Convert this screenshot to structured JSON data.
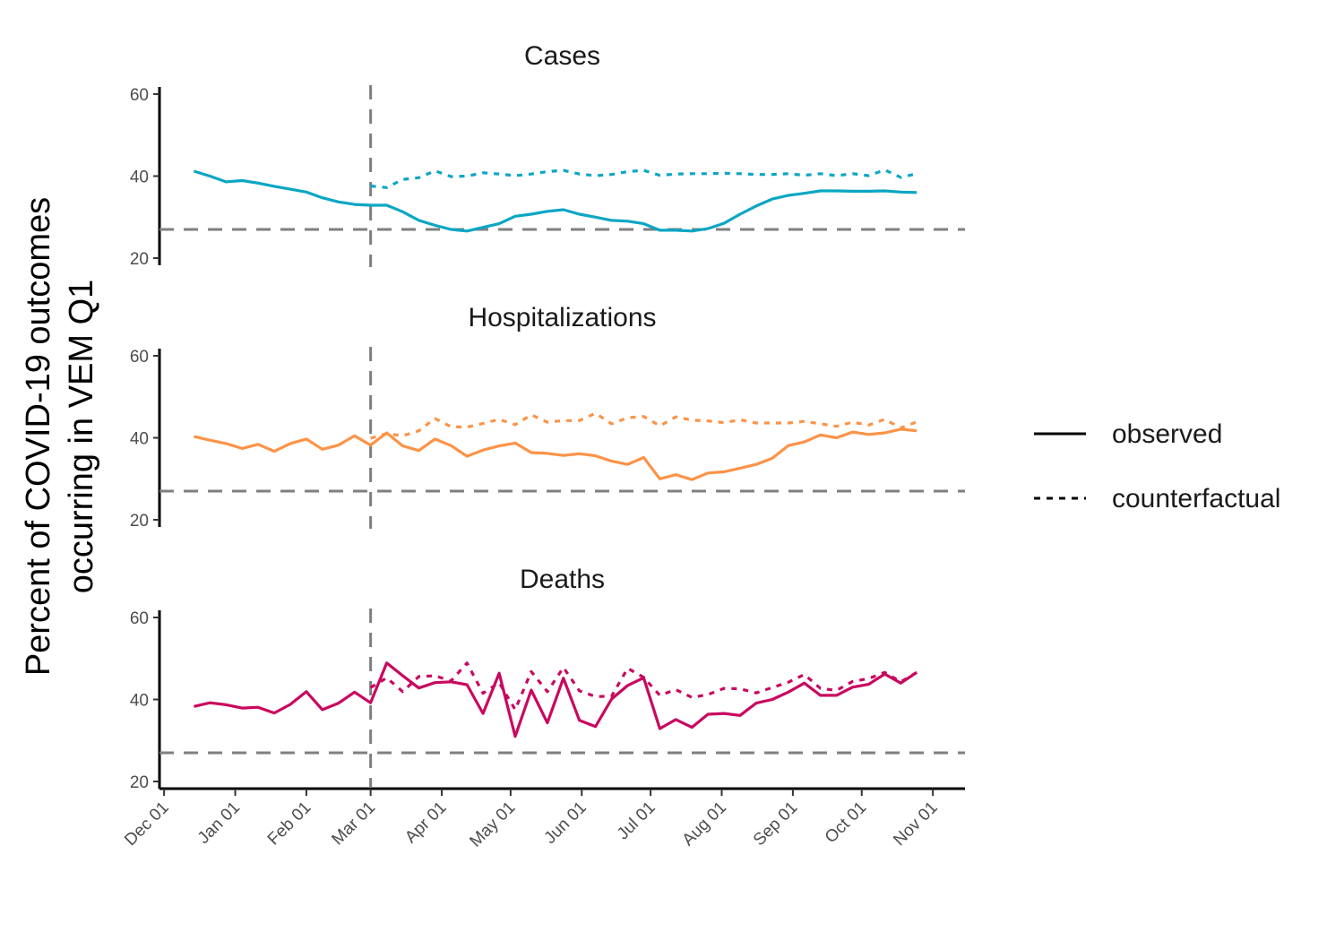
{
  "chart_data": {
    "type": "line",
    "ylabel_lines": [
      "Percent of COVID-19 outcomes",
      "occurring in VEM Q1"
    ],
    "ylim": [
      20,
      60
    ],
    "yticks": [
      20,
      40,
      60
    ],
    "xlim": [
      "2020-11-29",
      "2021-11-15"
    ],
    "xticks": [
      {
        "date": "2020-12-01",
        "label": "Dec 01"
      },
      {
        "date": "2021-01-01",
        "label": "Jan 01"
      },
      {
        "date": "2021-02-01",
        "label": "Feb 01"
      },
      {
        "date": "2021-03-01",
        "label": "Mar 01"
      },
      {
        "date": "2021-04-01",
        "label": "Apr 01"
      },
      {
        "date": "2021-05-01",
        "label": "May 01"
      },
      {
        "date": "2021-06-01",
        "label": "Jun 01"
      },
      {
        "date": "2021-07-01",
        "label": "Jul 01"
      },
      {
        "date": "2021-08-01",
        "label": "Aug 01"
      },
      {
        "date": "2021-09-01",
        "label": "Sep 01"
      },
      {
        "date": "2021-10-01",
        "label": "Oct 01"
      },
      {
        "date": "2021-11-01",
        "label": "Nov 01"
      }
    ],
    "reference_hline": 27,
    "reference_vline": "2021-03-01",
    "legend": {
      "position": "right",
      "entries": [
        {
          "label": "observed",
          "style": "solid"
        },
        {
          "label": "counterfactual",
          "style": "dotted"
        }
      ]
    },
    "panels": [
      {
        "title": "Cases",
        "color": "#0BA6C4",
        "observed": [
          [
            "2020-12-14",
            41.2
          ],
          [
            "2020-12-21",
            40.0
          ],
          [
            "2020-12-28",
            38.6
          ],
          [
            "2021-01-04",
            38.9
          ],
          [
            "2021-01-11",
            38.3
          ],
          [
            "2021-01-18",
            37.5
          ],
          [
            "2021-01-25",
            36.8
          ],
          [
            "2021-02-01",
            36.1
          ],
          [
            "2021-02-08",
            34.7
          ],
          [
            "2021-02-15",
            33.7
          ],
          [
            "2021-02-22",
            33.1
          ],
          [
            "2021-03-01",
            32.9
          ],
          [
            "2021-03-08",
            32.9
          ],
          [
            "2021-03-15",
            31.3
          ],
          [
            "2021-03-22",
            29.2
          ],
          [
            "2021-03-29",
            28.0
          ],
          [
            "2021-04-05",
            27.0
          ],
          [
            "2021-04-12",
            26.6
          ],
          [
            "2021-04-19",
            27.5
          ],
          [
            "2021-04-26",
            28.4
          ],
          [
            "2021-05-03",
            30.2
          ],
          [
            "2021-05-10",
            30.7
          ],
          [
            "2021-05-17",
            31.4
          ],
          [
            "2021-05-24",
            31.8
          ],
          [
            "2021-05-31",
            30.7
          ],
          [
            "2021-06-07",
            30.0
          ],
          [
            "2021-06-14",
            29.2
          ],
          [
            "2021-06-21",
            29.0
          ],
          [
            "2021-06-28",
            28.4
          ],
          [
            "2021-07-05",
            26.8
          ],
          [
            "2021-07-12",
            26.8
          ],
          [
            "2021-07-19",
            26.6
          ],
          [
            "2021-07-26",
            27.2
          ],
          [
            "2021-08-02",
            28.5
          ],
          [
            "2021-08-09",
            30.7
          ],
          [
            "2021-08-16",
            32.7
          ],
          [
            "2021-08-23",
            34.4
          ],
          [
            "2021-08-30",
            35.3
          ],
          [
            "2021-09-06",
            35.8
          ],
          [
            "2021-09-13",
            36.4
          ],
          [
            "2021-09-20",
            36.4
          ],
          [
            "2021-09-27",
            36.3
          ],
          [
            "2021-10-04",
            36.3
          ],
          [
            "2021-10-11",
            36.4
          ],
          [
            "2021-10-18",
            36.1
          ],
          [
            "2021-10-25",
            36.0
          ]
        ],
        "counterfactual": [
          [
            "2021-03-01",
            37.6
          ],
          [
            "2021-03-08",
            37.2
          ],
          [
            "2021-03-15",
            39.2
          ],
          [
            "2021-03-22",
            39.6
          ],
          [
            "2021-03-29",
            41.3
          ],
          [
            "2021-04-05",
            39.9
          ],
          [
            "2021-04-12",
            40.0
          ],
          [
            "2021-04-19",
            40.8
          ],
          [
            "2021-04-26",
            40.5
          ],
          [
            "2021-05-03",
            40.1
          ],
          [
            "2021-05-10",
            40.5
          ],
          [
            "2021-05-17",
            41.1
          ],
          [
            "2021-05-24",
            41.4
          ],
          [
            "2021-05-31",
            40.5
          ],
          [
            "2021-06-07",
            40.1
          ],
          [
            "2021-06-14",
            40.4
          ],
          [
            "2021-06-21",
            41.1
          ],
          [
            "2021-06-28",
            41.4
          ],
          [
            "2021-07-05",
            40.2
          ],
          [
            "2021-07-12",
            40.5
          ],
          [
            "2021-07-19",
            40.6
          ],
          [
            "2021-07-26",
            40.6
          ],
          [
            "2021-08-02",
            40.7
          ],
          [
            "2021-08-09",
            40.6
          ],
          [
            "2021-08-16",
            40.4
          ],
          [
            "2021-08-23",
            40.4
          ],
          [
            "2021-08-30",
            40.6
          ],
          [
            "2021-09-06",
            40.2
          ],
          [
            "2021-09-13",
            40.6
          ],
          [
            "2021-09-20",
            40.1
          ],
          [
            "2021-09-27",
            40.6
          ],
          [
            "2021-10-04",
            40.1
          ],
          [
            "2021-10-11",
            41.5
          ],
          [
            "2021-10-18",
            39.7
          ],
          [
            "2021-10-25",
            40.6
          ]
        ]
      },
      {
        "title": "Hospitalizations",
        "color": "#FC9347",
        "observed": [
          [
            "2020-12-14",
            40.3
          ],
          [
            "2020-12-21",
            39.4
          ],
          [
            "2020-12-28",
            38.6
          ],
          [
            "2021-01-04",
            37.4
          ],
          [
            "2021-01-11",
            38.4
          ],
          [
            "2021-01-18",
            36.7
          ],
          [
            "2021-01-25",
            38.6
          ],
          [
            "2021-02-01",
            39.7
          ],
          [
            "2021-02-08",
            37.2
          ],
          [
            "2021-02-15",
            38.2
          ],
          [
            "2021-02-22",
            40.5
          ],
          [
            "2021-03-01",
            38.2
          ],
          [
            "2021-03-08",
            41.2
          ],
          [
            "2021-03-15",
            38.0
          ],
          [
            "2021-03-22",
            36.9
          ],
          [
            "2021-03-29",
            39.7
          ],
          [
            "2021-04-05",
            38.1
          ],
          [
            "2021-04-12",
            35.5
          ],
          [
            "2021-04-19",
            37.0
          ],
          [
            "2021-04-26",
            38.0
          ],
          [
            "2021-05-03",
            38.7
          ],
          [
            "2021-05-10",
            36.4
          ],
          [
            "2021-05-17",
            36.2
          ],
          [
            "2021-05-24",
            35.7
          ],
          [
            "2021-05-31",
            36.1
          ],
          [
            "2021-06-07",
            35.6
          ],
          [
            "2021-06-14",
            34.3
          ],
          [
            "2021-06-21",
            33.5
          ],
          [
            "2021-06-28",
            35.2
          ],
          [
            "2021-07-05",
            30.0
          ],
          [
            "2021-07-12",
            31.0
          ],
          [
            "2021-07-19",
            29.8
          ],
          [
            "2021-07-26",
            31.4
          ],
          [
            "2021-08-02",
            31.7
          ],
          [
            "2021-08-09",
            32.6
          ],
          [
            "2021-08-16",
            33.5
          ],
          [
            "2021-08-23",
            35.0
          ],
          [
            "2021-08-30",
            38.1
          ],
          [
            "2021-09-06",
            39.0
          ],
          [
            "2021-09-13",
            40.7
          ],
          [
            "2021-09-20",
            40.0
          ],
          [
            "2021-09-27",
            41.4
          ],
          [
            "2021-10-04",
            40.8
          ],
          [
            "2021-10-11",
            41.2
          ],
          [
            "2021-10-18",
            42.1
          ],
          [
            "2021-10-25",
            41.7
          ]
        ],
        "counterfactual": [
          [
            "2021-03-01",
            39.9
          ],
          [
            "2021-03-08",
            41.0
          ],
          [
            "2021-03-15",
            40.5
          ],
          [
            "2021-03-22",
            41.7
          ],
          [
            "2021-03-29",
            44.7
          ],
          [
            "2021-04-05",
            42.7
          ],
          [
            "2021-04-12",
            42.6
          ],
          [
            "2021-04-19",
            43.5
          ],
          [
            "2021-04-26",
            44.5
          ],
          [
            "2021-05-03",
            43.2
          ],
          [
            "2021-05-10",
            45.6
          ],
          [
            "2021-05-17",
            43.8
          ],
          [
            "2021-05-24",
            44.2
          ],
          [
            "2021-05-31",
            44.2
          ],
          [
            "2021-06-07",
            46.0
          ],
          [
            "2021-06-14",
            43.4
          ],
          [
            "2021-06-21",
            44.9
          ],
          [
            "2021-06-28",
            45.2
          ],
          [
            "2021-07-05",
            42.9
          ],
          [
            "2021-07-12",
            45.1
          ],
          [
            "2021-07-19",
            44.3
          ],
          [
            "2021-07-26",
            44.1
          ],
          [
            "2021-08-02",
            43.7
          ],
          [
            "2021-08-09",
            44.4
          ],
          [
            "2021-08-16",
            43.6
          ],
          [
            "2021-08-23",
            43.6
          ],
          [
            "2021-08-30",
            43.6
          ],
          [
            "2021-09-06",
            44.0
          ],
          [
            "2021-09-13",
            43.4
          ],
          [
            "2021-09-20",
            42.8
          ],
          [
            "2021-09-27",
            43.8
          ],
          [
            "2021-10-04",
            43.1
          ],
          [
            "2021-10-11",
            44.5
          ],
          [
            "2021-10-18",
            42.4
          ],
          [
            "2021-10-25",
            43.9
          ]
        ]
      },
      {
        "title": "Deaths",
        "color": "#C9085F",
        "observed": [
          [
            "2020-12-14",
            38.3
          ],
          [
            "2020-12-21",
            39.2
          ],
          [
            "2020-12-28",
            38.7
          ],
          [
            "2021-01-04",
            37.9
          ],
          [
            "2021-01-11",
            38.1
          ],
          [
            "2021-01-18",
            36.7
          ],
          [
            "2021-01-25",
            38.8
          ],
          [
            "2021-02-01",
            41.9
          ],
          [
            "2021-02-08",
            37.5
          ],
          [
            "2021-02-15",
            39.1
          ],
          [
            "2021-02-22",
            41.8
          ],
          [
            "2021-03-01",
            39.2
          ],
          [
            "2021-03-08",
            48.9
          ],
          [
            "2021-03-15",
            45.8
          ],
          [
            "2021-03-22",
            42.8
          ],
          [
            "2021-03-29",
            44.1
          ],
          [
            "2021-04-05",
            44.3
          ],
          [
            "2021-04-12",
            43.6
          ],
          [
            "2021-04-19",
            36.6
          ],
          [
            "2021-04-26",
            46.4
          ],
          [
            "2021-05-03",
            31.0
          ],
          [
            "2021-05-10",
            42.3
          ],
          [
            "2021-05-17",
            34.3
          ],
          [
            "2021-05-24",
            45.2
          ],
          [
            "2021-05-31",
            34.9
          ],
          [
            "2021-06-07",
            33.4
          ],
          [
            "2021-06-14",
            40.1
          ],
          [
            "2021-06-21",
            43.4
          ],
          [
            "2021-06-28",
            45.3
          ],
          [
            "2021-07-05",
            32.9
          ],
          [
            "2021-07-12",
            35.1
          ],
          [
            "2021-07-19",
            33.2
          ],
          [
            "2021-07-26",
            36.4
          ],
          [
            "2021-08-02",
            36.6
          ],
          [
            "2021-08-09",
            36.1
          ],
          [
            "2021-08-16",
            39.1
          ],
          [
            "2021-08-23",
            40.0
          ],
          [
            "2021-08-30",
            41.8
          ],
          [
            "2021-09-06",
            44.0
          ],
          [
            "2021-09-13",
            41.0
          ],
          [
            "2021-09-20",
            41.0
          ],
          [
            "2021-09-27",
            43.0
          ],
          [
            "2021-10-04",
            43.7
          ],
          [
            "2021-10-11",
            46.2
          ],
          [
            "2021-10-18",
            44.0
          ],
          [
            "2021-10-25",
            46.6
          ]
        ],
        "counterfactual": [
          [
            "2021-03-01",
            42.9
          ],
          [
            "2021-03-08",
            45.3
          ],
          [
            "2021-03-15",
            41.9
          ],
          [
            "2021-03-22",
            45.6
          ],
          [
            "2021-03-29",
            45.8
          ],
          [
            "2021-04-05",
            44.5
          ],
          [
            "2021-04-12",
            48.9
          ],
          [
            "2021-04-19",
            41.5
          ],
          [
            "2021-04-26",
            44.1
          ],
          [
            "2021-05-03",
            37.5
          ],
          [
            "2021-05-10",
            46.8
          ],
          [
            "2021-05-17",
            41.9
          ],
          [
            "2021-05-24",
            47.8
          ],
          [
            "2021-05-31",
            42.1
          ],
          [
            "2021-06-07",
            40.7
          ],
          [
            "2021-06-14",
            40.8
          ],
          [
            "2021-06-21",
            47.6
          ],
          [
            "2021-06-28",
            45.4
          ],
          [
            "2021-07-05",
            41.0
          ],
          [
            "2021-07-12",
            42.4
          ],
          [
            "2021-07-19",
            40.5
          ],
          [
            "2021-07-26",
            41.2
          ],
          [
            "2021-08-02",
            42.7
          ],
          [
            "2021-08-09",
            42.6
          ],
          [
            "2021-08-16",
            41.6
          ],
          [
            "2021-08-23",
            42.9
          ],
          [
            "2021-08-30",
            44.2
          ],
          [
            "2021-09-06",
            46.1
          ],
          [
            "2021-09-13",
            42.7
          ],
          [
            "2021-09-20",
            42.2
          ],
          [
            "2021-09-27",
            44.4
          ],
          [
            "2021-10-04",
            45.1
          ],
          [
            "2021-10-11",
            46.6
          ],
          [
            "2021-10-18",
            44.3
          ],
          [
            "2021-10-25",
            46.6
          ]
        ]
      }
    ]
  }
}
